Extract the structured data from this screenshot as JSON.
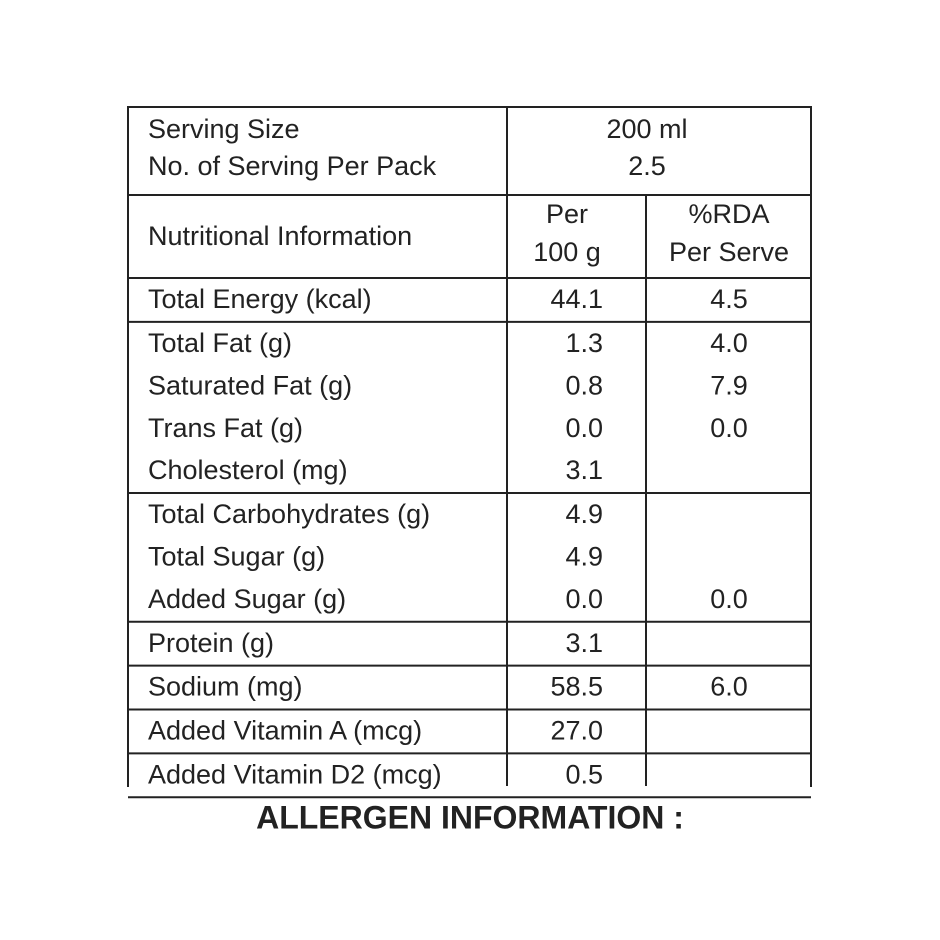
{
  "serving": {
    "labels": [
      "Serving Size",
      "No. of Serving Per Pack"
    ],
    "values": [
      "200 ml",
      "2.5"
    ]
  },
  "header": {
    "label": "Nutritional Information",
    "per": [
      "Per",
      "100 g"
    ],
    "rda": [
      "%RDA",
      "Per Serve"
    ]
  },
  "table": {
    "groups": [
      [
        [
          "Total Energy (kcal)",
          "44.1",
          "4.5"
        ]
      ],
      [
        [
          "Total Fat (g)",
          "1.3",
          "4.0"
        ],
        [
          "Saturated Fat (g)",
          "0.8",
          "7.9"
        ],
        [
          "Trans Fat (g)",
          "0.0",
          "0.0"
        ],
        [
          "Cholesterol (mg)",
          "3.1",
          null
        ]
      ],
      [
        [
          "Total Carbohydrates (g)",
          "4.9",
          null
        ],
        [
          "Total Sugar (g)",
          "4.9",
          null
        ],
        [
          "Added Sugar (g)",
          "0.0",
          "0.0"
        ]
      ],
      [
        [
          "Protein (g)",
          "3.1",
          null
        ]
      ],
      [
        [
          "Sodium (mg)",
          "58.5",
          "6.0"
        ]
      ],
      [
        [
          "Added Vitamin A (mcg)",
          "27.0",
          null
        ]
      ],
      [
        [
          "Added Vitamin D2 (mcg)",
          "0.5",
          null
        ]
      ]
    ]
  },
  "footer": {
    "title": "ALLERGEN INFORMATION :"
  }
}
